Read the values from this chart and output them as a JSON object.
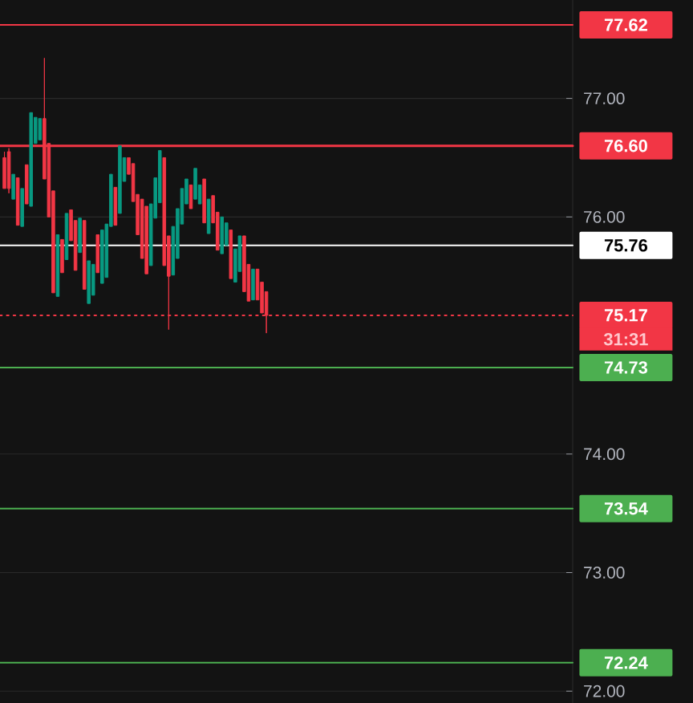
{
  "chart_data": {
    "type": "candlestick",
    "categories": [
      null,
      null,
      null,
      null,
      null,
      null,
      null,
      null,
      null,
      null,
      null,
      null,
      null,
      null,
      null,
      null,
      null,
      null,
      null,
      null,
      null,
      null,
      null,
      null,
      null,
      null,
      null,
      null,
      null,
      null,
      null,
      null,
      null,
      null,
      null,
      null,
      null,
      null,
      null,
      null,
      null,
      null,
      null,
      null,
      null,
      null,
      null,
      null,
      null,
      null,
      null,
      null,
      null,
      null,
      null,
      null,
      null,
      null,
      null,
      null,
      null,
      null,
      null,
      null,
      null,
      null,
      null,
      null,
      null,
      null,
      null,
      null,
      null,
      null,
      null,
      null,
      null,
      null,
      null,
      null,
      null,
      null,
      null,
      null,
      null,
      null,
      null,
      null,
      null,
      null,
      null,
      null,
      null,
      null,
      null,
      null,
      null,
      null,
      null,
      null,
      null,
      null,
      null,
      null,
      null,
      null,
      null,
      null,
      null,
      null,
      null,
      null,
      null,
      null,
      null,
      null,
      null,
      null,
      null,
      null,
      null,
      null,
      null,
      null,
      null,
      null,
      null,
      null
    ],
    "ohlc": [
      [
        76.5,
        76.55,
        76.24,
        76.24
      ],
      [
        76.55,
        76.58,
        76.2,
        76.24
      ],
      [
        76.15,
        76.36,
        76.15,
        76.36
      ],
      [
        76.33,
        76.33,
        75.93,
        75.93
      ],
      [
        75.92,
        76.24,
        75.92,
        76.24
      ],
      [
        76.44,
        76.44,
        76.11,
        76.11
      ],
      [
        76.09,
        76.88,
        76.09,
        76.88
      ],
      [
        76.62,
        76.84,
        76.62,
        76.84
      ],
      [
        76.65,
        76.83,
        76.65,
        76.83
      ],
      [
        76.83,
        77.34,
        76.32,
        76.32
      ],
      [
        76.62,
        76.62,
        76.0,
        76.0
      ],
      [
        76.22,
        76.22,
        75.36,
        75.36
      ],
      [
        75.33,
        75.85,
        75.33,
        75.85
      ],
      [
        75.81,
        75.81,
        75.53,
        75.53
      ],
      [
        75.64,
        76.03,
        75.64,
        76.03
      ],
      [
        76.06,
        76.06,
        75.8,
        75.8
      ],
      [
        75.97,
        75.97,
        75.55,
        75.55
      ],
      [
        75.7,
        75.99,
        75.7,
        75.99
      ],
      [
        75.97,
        75.97,
        75.39,
        75.39
      ],
      [
        75.27,
        75.63,
        75.27,
        75.63
      ],
      [
        75.34,
        75.6,
        75.34,
        75.6
      ],
      [
        75.85,
        75.85,
        75.53,
        75.53
      ],
      [
        75.44,
        75.89,
        75.44,
        75.89
      ],
      [
        75.49,
        75.94,
        75.49,
        75.94
      ],
      [
        75.92,
        76.36,
        75.92,
        76.36
      ],
      [
        76.25,
        76.25,
        75.93,
        75.93
      ],
      [
        76.03,
        76.6,
        76.03,
        76.6
      ],
      [
        76.3,
        76.5,
        76.3,
        76.5
      ],
      [
        76.5,
        76.5,
        76.36,
        76.36
      ],
      [
        76.45,
        76.45,
        76.13,
        76.13
      ],
      [
        76.19,
        76.19,
        75.85,
        75.85
      ],
      [
        76.15,
        76.15,
        75.65,
        75.65
      ],
      [
        76.09,
        76.09,
        75.52,
        75.52
      ],
      [
        75.59,
        76.11,
        75.59,
        76.11
      ],
      [
        75.99,
        76.33,
        75.99,
        76.33
      ],
      [
        76.12,
        76.56,
        76.12,
        76.56
      ],
      [
        76.5,
        76.5,
        75.59,
        75.59
      ],
      [
        75.84,
        75.84,
        75.05,
        75.5
      ],
      [
        75.51,
        75.92,
        75.51,
        75.92
      ],
      [
        75.65,
        76.07,
        75.65,
        76.07
      ],
      [
        75.94,
        76.24,
        75.94,
        76.24
      ],
      [
        76.11,
        76.32,
        76.11,
        76.32
      ],
      [
        76.27,
        76.27,
        76.07,
        76.07
      ],
      [
        76.15,
        76.41,
        76.15,
        76.41
      ],
      [
        76.11,
        76.27,
        76.11,
        76.27
      ],
      [
        76.32,
        76.32,
        75.95,
        75.95
      ],
      [
        75.86,
        76.15,
        75.86,
        76.15
      ],
      [
        76.18,
        76.18,
        75.95,
        75.95
      ],
      [
        76.04,
        76.04,
        75.72,
        75.72
      ],
      [
        75.69,
        76.0,
        75.69,
        76.0
      ],
      [
        75.76,
        75.95,
        75.76,
        75.95
      ],
      [
        75.89,
        75.89,
        75.48,
        75.48
      ],
      [
        75.45,
        75.73,
        75.45,
        75.73
      ],
      [
        75.54,
        75.84,
        75.54,
        75.84
      ],
      [
        75.84,
        75.84,
        75.37,
        75.37
      ],
      [
        75.6,
        75.6,
        75.29,
        75.29
      ],
      [
        75.3,
        75.56,
        75.3,
        75.56
      ],
      [
        75.56,
        75.56,
        75.3,
        75.3
      ],
      [
        75.45,
        75.45,
        75.19,
        75.19
      ],
      [
        75.37,
        75.37,
        75.02,
        75.17
      ],
      null,
      null,
      null,
      null,
      null,
      null,
      null,
      null,
      null,
      null,
      null,
      null,
      null,
      null,
      null,
      null,
      null,
      null,
      null,
      null,
      null,
      null,
      null,
      null,
      null,
      null,
      null,
      null,
      null,
      null,
      null,
      null,
      null,
      null,
      null,
      null,
      null,
      null,
      null,
      null,
      null,
      null,
      null,
      null,
      null,
      null,
      null,
      null,
      null,
      null,
      null,
      null,
      null,
      null,
      null,
      null,
      null,
      null,
      null,
      null,
      null,
      null,
      null,
      null,
      null,
      null,
      null,
      null
    ],
    "ylim": [
      71.9,
      77.83
    ],
    "yticks": [
      {
        "value": 72,
        "label": "72.00"
      },
      {
        "value": 73,
        "label": "73.00"
      },
      {
        "value": 74,
        "label": "74.00"
      },
      {
        "value": 76,
        "label": "76.00"
      },
      {
        "value": 77,
        "label": "77.00"
      }
    ],
    "tick_labels": "y",
    "grid": "y",
    "ref_lines": [
      {
        "axis": "y",
        "value": 77.62,
        "label": "77.62",
        "color": "#f23645",
        "line_style": "solid"
      },
      {
        "axis": "y",
        "value": 76.6,
        "label": "76.60",
        "color": "#f23645",
        "line_style": "solid"
      },
      {
        "axis": "y",
        "value": 75.76,
        "label": "75.76",
        "color": "#ffffff",
        "line_style": "solid"
      },
      {
        "axis": "y",
        "value": 75.17,
        "label": "75.17",
        "color": "#f23645",
        "line_style": "dotted"
      },
      {
        "axis": "y",
        "value": 74.73,
        "label": "74.73",
        "color": "#4caf50",
        "line_style": "solid"
      },
      {
        "axis": "y",
        "value": 73.54,
        "label": "73.54",
        "color": "#4caf50",
        "line_style": "solid"
      },
      {
        "axis": "y",
        "value": 72.24,
        "label": "72.24",
        "color": "#4caf50",
        "line_style": "solid"
      }
    ],
    "annotations": [
      "31:31"
    ]
  }
}
